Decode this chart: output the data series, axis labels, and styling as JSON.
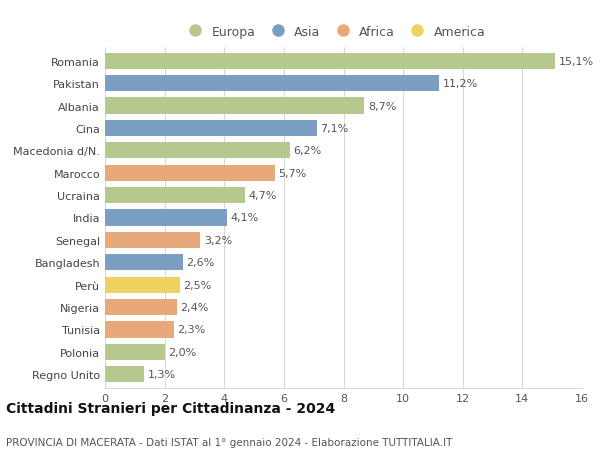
{
  "title": "Cittadini Stranieri per Cittadinanza - 2024",
  "subtitle": "PROVINCIA DI MACERATA - Dati ISTAT al 1° gennaio 2024 - Elaborazione TUTTITALIA.IT",
  "categories": [
    "Romania",
    "Pakistan",
    "Albania",
    "Cina",
    "Macedonia d/N.",
    "Marocco",
    "Ucraina",
    "India",
    "Senegal",
    "Bangladesh",
    "Perù",
    "Nigeria",
    "Tunisia",
    "Polonia",
    "Regno Unito"
  ],
  "values": [
    15.1,
    11.2,
    8.7,
    7.1,
    6.2,
    5.7,
    4.7,
    4.1,
    3.2,
    2.6,
    2.5,
    2.4,
    2.3,
    2.0,
    1.3
  ],
  "continents": [
    "Europa",
    "Asia",
    "Europa",
    "Asia",
    "Europa",
    "Africa",
    "Europa",
    "Asia",
    "Africa",
    "Asia",
    "America",
    "Africa",
    "Africa",
    "Europa",
    "Europa"
  ],
  "continent_colors": {
    "Europa": "#b5c98e",
    "Asia": "#7a9fc2",
    "Africa": "#e8a97a",
    "America": "#f0d060"
  },
  "legend_order": [
    "Europa",
    "Asia",
    "Africa",
    "America"
  ],
  "xlim": [
    0,
    16
  ],
  "xticks": [
    0,
    2,
    4,
    6,
    8,
    10,
    12,
    14,
    16
  ],
  "background_color": "#ffffff",
  "grid_color": "#d8d8d8",
  "bar_height": 0.72,
  "label_fontsize": 8,
  "title_fontsize": 10,
  "subtitle_fontsize": 7.5,
  "legend_fontsize": 9,
  "tick_fontsize": 8
}
